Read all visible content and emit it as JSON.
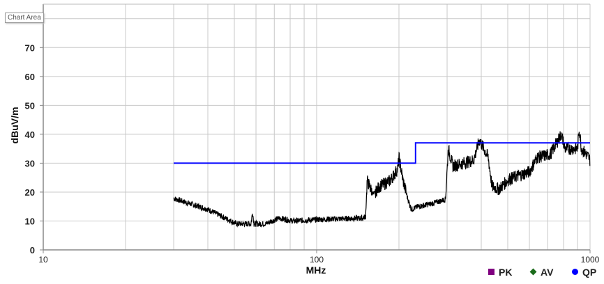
{
  "tooltip": "Chart Area",
  "chart_data": {
    "type": "line",
    "xlabel": "MHz",
    "ylabel": "dBuV/m",
    "xscale": "log",
    "xlim": [
      10,
      1000
    ],
    "ylim": [
      0,
      85
    ],
    "x_tick_labels": [
      "10",
      "100",
      "1000"
    ],
    "y_ticks": [
      0,
      10,
      20,
      30,
      40,
      50,
      60,
      70
    ],
    "y_tick_labels": [
      "0",
      "10",
      "20",
      "30",
      "40",
      "50",
      "60",
      "70"
    ],
    "grid": true,
    "legend_position": "bottom-right",
    "legend": [
      {
        "label": "PK",
        "color": "#800080",
        "marker": "square"
      },
      {
        "label": "AV",
        "color": "#1a6b1a",
        "marker": "diamond"
      },
      {
        "label": "QP",
        "color": "#0000ff",
        "marker": "circle"
      }
    ],
    "limit_line": {
      "color": "#0000ff",
      "points": [
        [
          30,
          30
        ],
        [
          230,
          30
        ],
        [
          230,
          37
        ],
        [
          1000,
          37
        ]
      ]
    },
    "trace": {
      "color": "#000000",
      "points": [
        [
          30,
          17.8
        ],
        [
          40,
          14
        ],
        [
          51,
          9
        ],
        [
          57.5,
          9
        ],
        [
          58.3,
          13
        ],
        [
          59,
          9
        ],
        [
          65,
          9
        ],
        [
          72.8,
          11
        ],
        [
          82,
          10
        ],
        [
          100,
          10.5
        ],
        [
          147,
          11
        ],
        [
          151,
          11.5
        ],
        [
          153,
          24
        ],
        [
          161,
          19
        ],
        [
          170,
          22
        ],
        [
          186,
          24
        ],
        [
          198,
          28
        ],
        [
          200,
          32
        ],
        [
          207,
          24
        ],
        [
          215,
          18
        ],
        [
          222,
          14
        ],
        [
          235,
          15
        ],
        [
          264,
          16
        ],
        [
          296,
          17.5
        ],
        [
          303,
          35
        ],
        [
          315,
          29
        ],
        [
          375,
          31
        ],
        [
          394,
          38
        ],
        [
          424,
          32
        ],
        [
          438,
          22
        ],
        [
          464,
          21
        ],
        [
          506,
          24.5
        ],
        [
          600,
          27
        ],
        [
          640,
          32
        ],
        [
          715,
          33
        ],
        [
          785,
          40
        ],
        [
          810,
          35
        ],
        [
          900,
          35
        ],
        [
          913,
          42
        ],
        [
          930,
          35
        ],
        [
          990,
          32
        ],
        [
          1000,
          31
        ]
      ]
    }
  }
}
